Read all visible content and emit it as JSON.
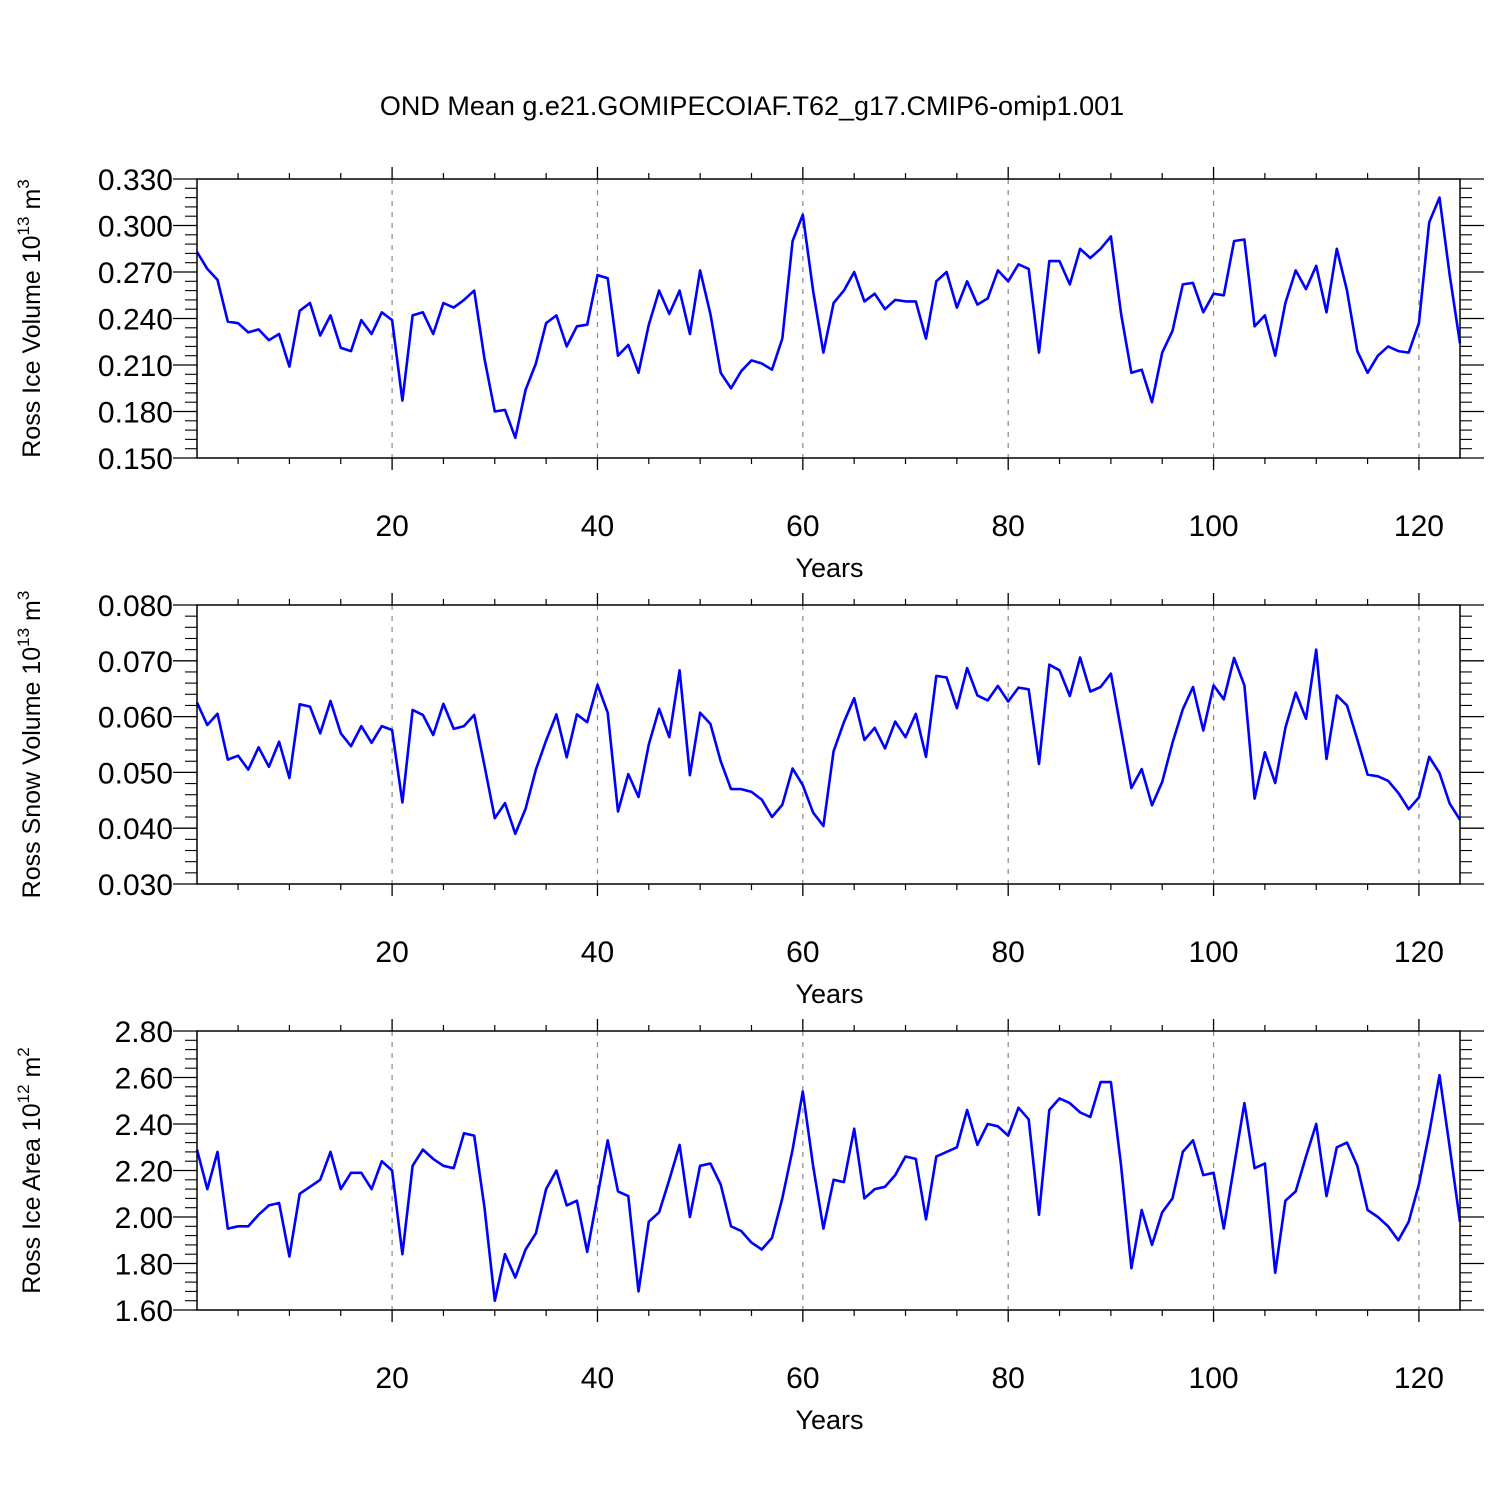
{
  "title": "OND Mean g.e21.GOMIPECOIAF.T62_g17.CMIP6-omip1.001",
  "colors": {
    "series": "#0000ff",
    "axis": "#000000",
    "grid": "#888888"
  },
  "chart_data": [
    {
      "type": "line",
      "ylabel": {
        "main": "Ross Ice Volume 10",
        "exp": "13",
        "unit": " m",
        "unit_exp": "3"
      },
      "xlabel": "Years",
      "xlim": [
        1,
        124
      ],
      "ylim": [
        0.15,
        0.33
      ],
      "grid": "vertical dashed",
      "xticks": [
        20,
        40,
        60,
        80,
        100,
        120
      ],
      "yticks": [
        "0.150",
        "0.180",
        "0.210",
        "0.240",
        "0.270",
        "0.300",
        "0.330"
      ],
      "series": [
        {
          "values": [
            0.283,
            0.272,
            0.265,
            0.238,
            0.237,
            0.231,
            0.233,
            0.226,
            0.23,
            0.209,
            0.245,
            0.25,
            0.229,
            0.242,
            0.221,
            0.219,
            0.239,
            0.23,
            0.244,
            0.239,
            0.187,
            0.242,
            0.244,
            0.23,
            0.25,
            0.247,
            0.252,
            0.258,
            0.214,
            0.18,
            0.181,
            0.163,
            0.194,
            0.211,
            0.237,
            0.242,
            0.222,
            0.235,
            0.236,
            0.268,
            0.266,
            0.216,
            0.223,
            0.205,
            0.236,
            0.258,
            0.243,
            0.258,
            0.23,
            0.271,
            0.243,
            0.205,
            0.195,
            0.206,
            0.213,
            0.211,
            0.207,
            0.227,
            0.29,
            0.307,
            0.258,
            0.218,
            0.25,
            0.258,
            0.27,
            0.251,
            0.256,
            0.246,
            0.252,
            0.251,
            0.251,
            0.227,
            0.264,
            0.27,
            0.247,
            0.264,
            0.249,
            0.253,
            0.271,
            0.264,
            0.275,
            0.272,
            0.218,
            0.277,
            0.277,
            0.262,
            0.285,
            0.279,
            0.285,
            0.293,
            0.243,
            0.205,
            0.207,
            0.186,
            0.218,
            0.232,
            0.262,
            0.263,
            0.244,
            0.256,
            0.255,
            0.29,
            0.291,
            0.235,
            0.242,
            0.216,
            0.25,
            0.271,
            0.259,
            0.274,
            0.244,
            0.285,
            0.258,
            0.219,
            0.205,
            0.216,
            0.222,
            0.219,
            0.218,
            0.237,
            0.302,
            0.318,
            0.268,
            0.224
          ]
        }
      ]
    },
    {
      "type": "line",
      "ylabel": {
        "main": "Ross Snow Volume 10",
        "exp": "13",
        "unit": " m",
        "unit_exp": "3"
      },
      "xlabel": "Years",
      "xlim": [
        1,
        124
      ],
      "ylim": [
        0.03,
        0.08
      ],
      "grid": "vertical dashed",
      "xticks": [
        20,
        40,
        60,
        80,
        100,
        120
      ],
      "yticks": [
        "0.030",
        "0.040",
        "0.050",
        "0.060",
        "0.070",
        "0.080"
      ],
      "series": [
        {
          "values": [
            0.0625,
            0.0585,
            0.0605,
            0.0523,
            0.053,
            0.0505,
            0.0545,
            0.051,
            0.0555,
            0.049,
            0.0622,
            0.0618,
            0.057,
            0.0628,
            0.057,
            0.0547,
            0.0583,
            0.0553,
            0.0583,
            0.0576,
            0.0446,
            0.0612,
            0.0603,
            0.0567,
            0.0623,
            0.0578,
            0.0583,
            0.0603,
            0.0512,
            0.0418,
            0.0445,
            0.039,
            0.0435,
            0.0505,
            0.0557,
            0.0604,
            0.0527,
            0.0604,
            0.059,
            0.0657,
            0.0607,
            0.043,
            0.0497,
            0.0456,
            0.055,
            0.0614,
            0.0563,
            0.0683,
            0.0495,
            0.0607,
            0.0587,
            0.052,
            0.047,
            0.047,
            0.0465,
            0.0451,
            0.042,
            0.0442,
            0.0507,
            0.0477,
            0.0428,
            0.0404,
            0.0538,
            0.059,
            0.0633,
            0.0558,
            0.058,
            0.0543,
            0.0591,
            0.0563,
            0.0605,
            0.0528,
            0.0673,
            0.067,
            0.0615,
            0.0687,
            0.0638,
            0.0629,
            0.0655,
            0.0627,
            0.0652,
            0.0649,
            0.0515,
            0.0693,
            0.0683,
            0.0637,
            0.0706,
            0.0645,
            0.0653,
            0.0677,
            0.0575,
            0.0472,
            0.0506,
            0.0441,
            0.0483,
            0.0553,
            0.0613,
            0.0653,
            0.0575,
            0.0656,
            0.0631,
            0.0705,
            0.0656,
            0.0453,
            0.0536,
            0.0481,
            0.058,
            0.0643,
            0.0596,
            0.072,
            0.0524,
            0.0638,
            0.062,
            0.0559,
            0.0496,
            0.0493,
            0.0485,
            0.0463,
            0.0434,
            0.0455,
            0.0528,
            0.0499,
            0.0444,
            0.0415
          ]
        }
      ]
    },
    {
      "type": "line",
      "ylabel": {
        "main": "Ross Ice Area 10",
        "exp": "12",
        "unit": " m",
        "unit_exp": "2"
      },
      "xlabel": "Years",
      "xlim": [
        1,
        124
      ],
      "ylim": [
        1.6,
        2.8
      ],
      "grid": "vertical dashed",
      "xticks": [
        20,
        40,
        60,
        80,
        100,
        120
      ],
      "yticks": [
        "1.60",
        "1.80",
        "2.00",
        "2.20",
        "2.40",
        "2.60",
        "2.80"
      ],
      "series": [
        {
          "values": [
            2.29,
            2.12,
            2.28,
            1.95,
            1.96,
            1.96,
            2.01,
            2.05,
            2.06,
            1.83,
            2.1,
            2.13,
            2.16,
            2.28,
            2.12,
            2.19,
            2.19,
            2.12,
            2.24,
            2.2,
            1.84,
            2.22,
            2.29,
            2.25,
            2.22,
            2.21,
            2.36,
            2.35,
            2.04,
            1.64,
            1.84,
            1.74,
            1.86,
            1.93,
            2.12,
            2.2,
            2.05,
            2.07,
            1.85,
            2.09,
            2.33,
            2.11,
            2.09,
            1.68,
            1.98,
            2.02,
            2.16,
            2.31,
            2.0,
            2.22,
            2.23,
            2.14,
            1.96,
            1.94,
            1.89,
            1.86,
            1.91,
            2.08,
            2.29,
            2.54,
            2.22,
            1.95,
            2.16,
            2.15,
            2.38,
            2.08,
            2.12,
            2.13,
            2.18,
            2.26,
            2.25,
            1.99,
            2.26,
            2.28,
            2.3,
            2.46,
            2.31,
            2.4,
            2.39,
            2.35,
            2.47,
            2.42,
            2.01,
            2.46,
            2.51,
            2.49,
            2.45,
            2.43,
            2.58,
            2.58,
            2.22,
            1.78,
            2.03,
            1.88,
            2.02,
            2.08,
            2.28,
            2.33,
            2.18,
            2.19,
            1.95,
            2.22,
            2.49,
            2.21,
            2.23,
            1.76,
            2.07,
            2.11,
            2.26,
            2.4,
            2.09,
            2.3,
            2.32,
            2.22,
            2.03,
            2.0,
            1.96,
            1.9,
            1.98,
            2.14,
            2.36,
            2.61,
            2.3,
            1.98
          ]
        }
      ]
    }
  ]
}
